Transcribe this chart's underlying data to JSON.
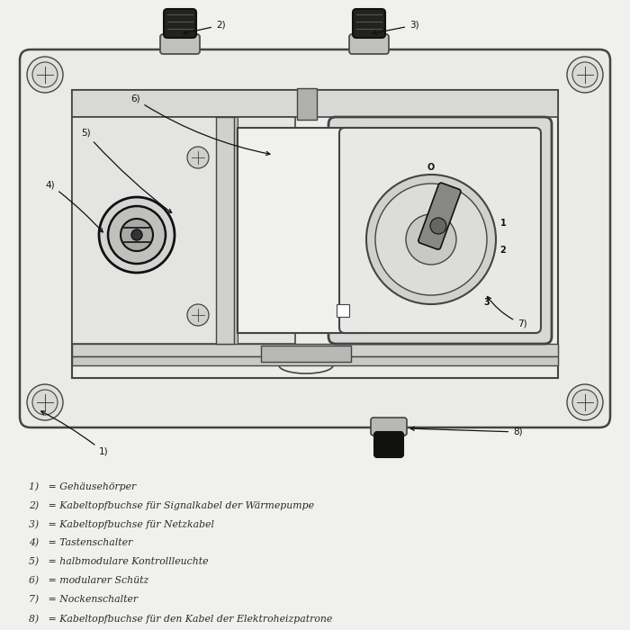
{
  "bg_color": "#f0f0ee",
  "line_color": "#444444",
  "dark_color": "#111111",
  "legend_items": [
    "1)   = Gehäusehörper",
    "2)   = Kabeltopfbuchse für Signalkabel der Wärmepumpe",
    "3)   = Kabeltopfbuchse für Netzkabel",
    "4)   = Tastenschalter",
    "5)   = halbmodulare Kontrollleuchte",
    "6)   = modularer Schütz",
    "7)   = Nockenschalter",
    "8)   = Kabeltopfbuchse für den Kabel der Elektroheizpatrone"
  ]
}
